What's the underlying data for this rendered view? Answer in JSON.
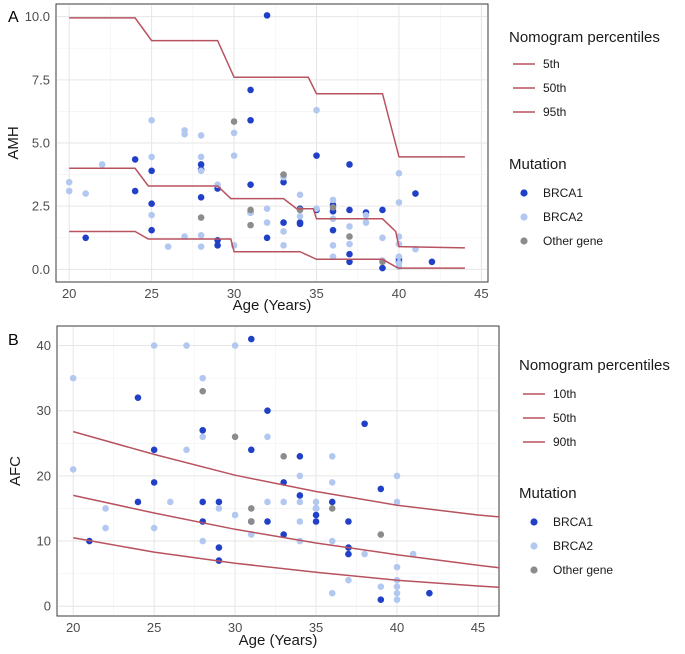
{
  "chart_data": [
    {
      "type": "scatter",
      "panel": "A",
      "xlabel": "Age (Years)",
      "ylabel": "AMH",
      "xlim": [
        19.2,
        45.4
      ],
      "ylim": [
        -0.5,
        10.5
      ],
      "xticks": [
        "20",
        "25",
        "30",
        "35",
        "40",
        "45"
      ],
      "yticks": [
        "0.0",
        "2.5",
        "5.0",
        "7.5",
        "10.0"
      ],
      "grid": true,
      "line_legend_title": "Nomogram percentiles",
      "point_legend_title": "Mutation",
      "line_color": "#b8525f",
      "lines": [
        {
          "name": "5th",
          "x": [
            20,
            24,
            24.8,
            25,
            29,
            29.8,
            30,
            33,
            33.8,
            34,
            35,
            38.9,
            39,
            39.8,
            40,
            44
          ],
          "y": [
            1.5,
            1.5,
            1.2,
            1.2,
            1.2,
            1.2,
            0.7,
            0.7,
            0.7,
            0.7,
            0.4,
            0.4,
            0.4,
            0.1,
            0.05,
            0.05
          ]
        },
        {
          "name": "50th",
          "x": [
            20,
            24,
            24.8,
            29,
            29.8,
            33,
            33.8,
            34.8,
            35,
            39,
            39.8,
            40,
            44
          ],
          "y": [
            4.0,
            4.0,
            3.3,
            3.3,
            2.8,
            2.8,
            2.4,
            2.4,
            2.0,
            2.0,
            1.5,
            0.9,
            0.85
          ]
        },
        {
          "name": "95th",
          "x": [
            20,
            24,
            25,
            29,
            30,
            34.5,
            35,
            39,
            40,
            44
          ],
          "y": [
            9.95,
            9.95,
            9.05,
            9.05,
            7.6,
            7.6,
            6.95,
            6.95,
            4.45,
            4.45
          ]
        }
      ],
      "point_series": [
        {
          "name": "BRCA1",
          "color": "#2040c8",
          "points": [
            [
              21,
              1.25
            ],
            [
              24,
              4.35
            ],
            [
              24,
              3.1
            ],
            [
              25,
              3.9
            ],
            [
              25,
              2.6
            ],
            [
              25,
              1.55
            ],
            [
              28,
              4.15
            ],
            [
              28,
              3.95
            ],
            [
              28,
              2.85
            ],
            [
              29,
              3.2
            ],
            [
              29,
              1.15
            ],
            [
              29,
              0.95
            ],
            [
              31,
              7.1
            ],
            [
              31,
              5.9
            ],
            [
              31,
              3.35
            ],
            [
              31,
              2.25
            ],
            [
              32,
              10.05
            ],
            [
              32,
              1.25
            ],
            [
              33,
              3.45
            ],
            [
              33,
              1.85
            ],
            [
              34,
              2.4
            ],
            [
              34,
              1.85
            ],
            [
              34,
              1.8
            ],
            [
              35,
              4.5
            ],
            [
              35,
              2.35
            ],
            [
              36,
              2.55
            ],
            [
              36,
              2.3
            ],
            [
              36,
              1.55
            ],
            [
              37,
              4.15
            ],
            [
              37,
              2.35
            ],
            [
              37,
              0.6
            ],
            [
              37,
              0.3
            ],
            [
              38,
              2.25
            ],
            [
              39,
              2.35
            ],
            [
              39,
              0.05
            ],
            [
              40,
              0.4
            ],
            [
              40,
              0.3
            ],
            [
              41,
              3.0
            ],
            [
              42,
              0.3
            ]
          ]
        },
        {
          "name": "BRCA2",
          "color": "#b3c8f0",
          "points": [
            [
              20,
              3.45
            ],
            [
              20,
              3.1
            ],
            [
              21,
              3.0
            ],
            [
              22,
              4.15
            ],
            [
              25,
              5.9
            ],
            [
              25,
              4.45
            ],
            [
              25,
              2.15
            ],
            [
              26,
              0.9
            ],
            [
              27,
              5.5
            ],
            [
              27,
              5.35
            ],
            [
              27,
              1.3
            ],
            [
              28,
              5.3
            ],
            [
              28,
              4.45
            ],
            [
              28,
              3.9
            ],
            [
              28,
              1.35
            ],
            [
              28,
              0.9
            ],
            [
              29,
              3.35
            ],
            [
              30,
              5.4
            ],
            [
              30,
              4.5
            ],
            [
              30,
              0.95
            ],
            [
              31,
              2.25
            ],
            [
              32,
              2.4
            ],
            [
              32,
              1.85
            ],
            [
              33,
              3.65
            ],
            [
              33,
              1.5
            ],
            [
              33,
              0.95
            ],
            [
              34,
              2.95
            ],
            [
              34,
              2.1
            ],
            [
              35,
              6.3
            ],
            [
              35,
              2.4
            ],
            [
              36,
              2.75
            ],
            [
              36,
              2.0
            ],
            [
              36,
              0.5
            ],
            [
              36,
              0.95
            ],
            [
              37,
              1.7
            ],
            [
              37,
              1.0
            ],
            [
              38,
              2.15
            ],
            [
              38,
              1.85
            ],
            [
              39,
              1.25
            ],
            [
              39,
              0.35
            ],
            [
              40,
              3.8
            ],
            [
              40,
              2.65
            ],
            [
              40,
              1.3
            ],
            [
              40,
              1.0
            ],
            [
              40,
              0.5
            ],
            [
              40,
              0.25
            ],
            [
              40,
              0.1
            ],
            [
              41,
              0.8
            ]
          ]
        },
        {
          "name": "Other gene",
          "color": "#8c8c8c",
          "points": [
            [
              28,
              2.05
            ],
            [
              30,
              5.85
            ],
            [
              31,
              2.35
            ],
            [
              31,
              1.75
            ],
            [
              33,
              3.75
            ],
            [
              34,
              2.35
            ],
            [
              36,
              2.45
            ],
            [
              37,
              1.3
            ],
            [
              39,
              0.3
            ]
          ]
        }
      ]
    },
    {
      "type": "scatter",
      "panel": "B",
      "xlabel": "Age (Years)",
      "ylabel": "AFC",
      "xlim": [
        19.0,
        46.3
      ],
      "ylim": [
        -1.5,
        43.0
      ],
      "xticks": [
        "20",
        "25",
        "30",
        "35",
        "40",
        "45"
      ],
      "yticks": [
        "0",
        "10",
        "20",
        "30",
        "40"
      ],
      "grid": true,
      "line_legend_title": "Nomogram percentiles",
      "point_legend_title": "Mutation",
      "line_color": "#b8525f",
      "lines": [
        {
          "name": "10th",
          "x": [
            20,
            25,
            30,
            35,
            40,
            45,
            46.3
          ],
          "y": [
            10.5,
            8.3,
            6.6,
            5.2,
            4.0,
            3.1,
            2.9
          ]
        },
        {
          "name": "50th",
          "x": [
            20,
            25,
            30,
            35,
            40,
            45,
            46.3
          ],
          "y": [
            17.0,
            14.3,
            11.8,
            9.7,
            7.9,
            6.3,
            5.9
          ]
        },
        {
          "name": "90th",
          "x": [
            20,
            25,
            30,
            35,
            40,
            45,
            46.3
          ],
          "y": [
            26.8,
            23.3,
            20.1,
            17.6,
            15.5,
            14.0,
            13.7
          ]
        }
      ],
      "point_series": [
        {
          "name": "BRCA1",
          "color": "#2040c8",
          "points": [
            [
              21,
              10
            ],
            [
              24,
              32
            ],
            [
              24,
              16
            ],
            [
              25,
              24
            ],
            [
              25,
              19
            ],
            [
              28,
              27
            ],
            [
              28,
              16
            ],
            [
              28,
              13
            ],
            [
              29,
              16
            ],
            [
              29,
              9
            ],
            [
              29,
              7
            ],
            [
              31,
              41
            ],
            [
              31,
              24
            ],
            [
              31,
              13
            ],
            [
              32,
              30
            ],
            [
              32,
              13
            ],
            [
              33,
              19
            ],
            [
              33,
              11
            ],
            [
              34,
              23
            ],
            [
              34,
              17
            ],
            [
              35,
              15
            ],
            [
              35,
              14
            ],
            [
              35,
              13
            ],
            [
              36,
              16
            ],
            [
              37,
              13
            ],
            [
              37,
              9
            ],
            [
              37,
              8
            ],
            [
              38,
              28
            ],
            [
              39,
              18
            ],
            [
              39,
              1
            ],
            [
              42,
              2
            ]
          ]
        },
        {
          "name": "BRCA2",
          "color": "#b3c8f0",
          "points": [
            [
              20,
              35
            ],
            [
              20,
              21
            ],
            [
              22,
              15
            ],
            [
              22,
              12
            ],
            [
              25,
              40
            ],
            [
              25,
              12
            ],
            [
              26,
              16
            ],
            [
              27,
              40
            ],
            [
              27,
              24
            ],
            [
              28,
              35
            ],
            [
              28,
              26
            ],
            [
              28,
              10
            ],
            [
              29,
              15
            ],
            [
              30,
              40
            ],
            [
              30,
              14
            ],
            [
              31,
              11
            ],
            [
              32,
              26
            ],
            [
              32,
              16
            ],
            [
              33,
              16
            ],
            [
              34,
              20
            ],
            [
              34,
              16
            ],
            [
              34,
              13
            ],
            [
              34,
              10
            ],
            [
              35,
              16
            ],
            [
              35,
              15
            ],
            [
              36,
              23
            ],
            [
              36,
              19
            ],
            [
              36,
              10
            ],
            [
              36,
              2
            ],
            [
              37,
              4
            ],
            [
              38,
              8
            ],
            [
              39,
              3
            ],
            [
              40,
              20
            ],
            [
              40,
              16
            ],
            [
              40,
              6
            ],
            [
              40,
              4
            ],
            [
              40,
              3
            ],
            [
              40,
              2
            ],
            [
              40,
              1
            ],
            [
              41,
              8
            ]
          ]
        },
        {
          "name": "Other gene",
          "color": "#8c8c8c",
          "points": [
            [
              28,
              33
            ],
            [
              30,
              26
            ],
            [
              31,
              15
            ],
            [
              31,
              13
            ],
            [
              33,
              23
            ],
            [
              36,
              15
            ],
            [
              39,
              11
            ]
          ]
        }
      ]
    }
  ]
}
